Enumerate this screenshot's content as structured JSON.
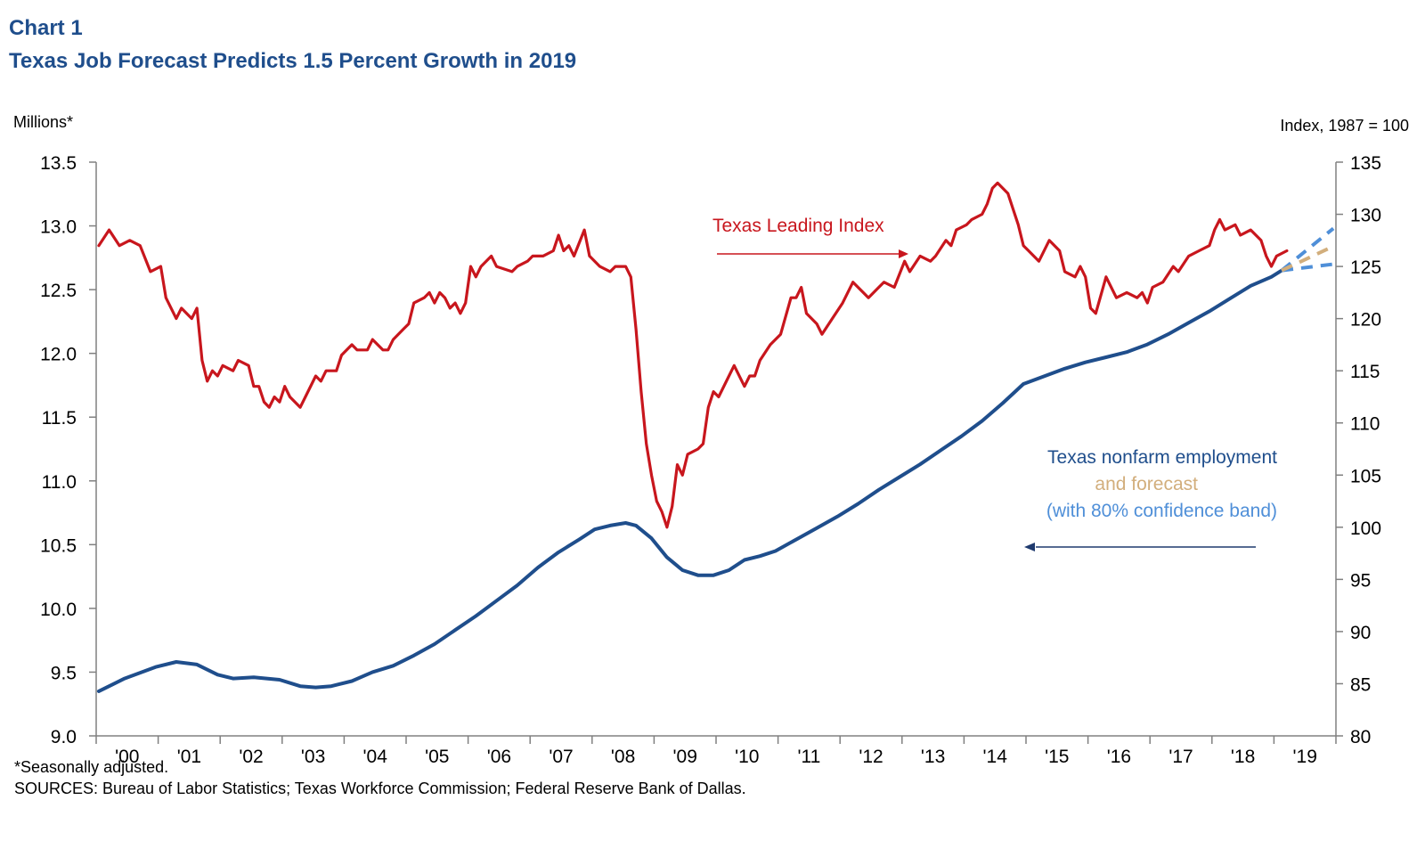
{
  "chart_number": "Chart 1",
  "title": "Texas Job Forecast Predicts 1.5 Percent Growth in 2019",
  "left_axis_label": "Millions*",
  "right_axis_label": "Index, 1987 = 100",
  "footnote": "*Seasonally adjusted.",
  "sources": "SOURCES: Bureau of Labor Statistics; Texas Workforce Commission; Federal Reserve Bank of Dallas.",
  "colors": {
    "title": "#1F4E8C",
    "leading_index": "#C8161D",
    "employment": "#1F4E8C",
    "forecast": "#D2AE7C",
    "confidence_band": "#4F8FD8",
    "axis": "#808080"
  },
  "chart_data": {
    "type": "line",
    "x_start": "2000-01",
    "x_end": "2019-12",
    "x_tick_labels": [
      "'00",
      "'01",
      "'02",
      "'03",
      "'04",
      "'05",
      "'06",
      "'07",
      "'08",
      "'09",
      "'10",
      "'11",
      "'12",
      "'13",
      "'14",
      "'15",
      "'16",
      "'17",
      "'18",
      "'19"
    ],
    "y_left": {
      "min": 9.0,
      "max": 13.5,
      "ticks": [
        "9.0",
        "9.5",
        "10.0",
        "10.5",
        "11.0",
        "11.5",
        "12.0",
        "12.5",
        "13.0",
        "13.5"
      ]
    },
    "y_right": {
      "min": 80,
      "max": 135,
      "ticks": [
        "80",
        "85",
        "90",
        "95",
        "100",
        "105",
        "110",
        "115",
        "120",
        "125",
        "130",
        "135"
      ]
    },
    "grid": false,
    "series": [
      {
        "name": "Texas Leading Index",
        "axis": "right",
        "points": [
          [
            "2000-01",
            127.0
          ],
          [
            "2000-03",
            128.5
          ],
          [
            "2000-05",
            127.0
          ],
          [
            "2000-07",
            127.5
          ],
          [
            "2000-09",
            127.0
          ],
          [
            "2000-11",
            124.5
          ],
          [
            "2001-01",
            125.0
          ],
          [
            "2001-02",
            122.0
          ],
          [
            "2001-04",
            120.0
          ],
          [
            "2001-05",
            121.0
          ],
          [
            "2001-07",
            120.0
          ],
          [
            "2001-08",
            121.0
          ],
          [
            "2001-09",
            116.0
          ],
          [
            "2001-10",
            114.0
          ],
          [
            "2001-11",
            115.0
          ],
          [
            "2001-12",
            114.5
          ],
          [
            "2002-01",
            115.5
          ],
          [
            "2002-03",
            115.0
          ],
          [
            "2002-04",
            116.0
          ],
          [
            "2002-06",
            115.5
          ],
          [
            "2002-07",
            113.5
          ],
          [
            "2002-08",
            113.5
          ],
          [
            "2002-09",
            112.0
          ],
          [
            "2002-10",
            111.5
          ],
          [
            "2002-11",
            112.5
          ],
          [
            "2002-12",
            112.0
          ],
          [
            "2003-01",
            113.5
          ],
          [
            "2003-02",
            112.5
          ],
          [
            "2003-04",
            111.5
          ],
          [
            "2003-05",
            112.5
          ],
          [
            "2003-07",
            114.5
          ],
          [
            "2003-08",
            114.0
          ],
          [
            "2003-09",
            115.0
          ],
          [
            "2003-11",
            115.0
          ],
          [
            "2003-12",
            116.5
          ],
          [
            "2004-02",
            117.5
          ],
          [
            "2004-03",
            117.0
          ],
          [
            "2004-05",
            117.0
          ],
          [
            "2004-06",
            118.0
          ],
          [
            "2004-08",
            117.0
          ],
          [
            "2004-09",
            117.0
          ],
          [
            "2004-10",
            118.0
          ],
          [
            "2004-12",
            119.0
          ],
          [
            "2005-01",
            119.5
          ],
          [
            "2005-02",
            121.5
          ],
          [
            "2005-04",
            122.0
          ],
          [
            "2005-05",
            122.5
          ],
          [
            "2005-06",
            121.5
          ],
          [
            "2005-07",
            122.5
          ],
          [
            "2005-08",
            122.0
          ],
          [
            "2005-09",
            121.0
          ],
          [
            "2005-10",
            121.5
          ],
          [
            "2005-11",
            120.5
          ],
          [
            "2005-12",
            121.5
          ],
          [
            "2006-01",
            125.0
          ],
          [
            "2006-02",
            124.0
          ],
          [
            "2006-03",
            125.0
          ],
          [
            "2006-05",
            126.0
          ],
          [
            "2006-06",
            125.0
          ],
          [
            "2006-09",
            124.5
          ],
          [
            "2006-10",
            125.0
          ],
          [
            "2006-12",
            125.5
          ],
          [
            "2007-01",
            126.0
          ],
          [
            "2007-03",
            126.0
          ],
          [
            "2007-05",
            126.5
          ],
          [
            "2007-06",
            128.0
          ],
          [
            "2007-07",
            126.5
          ],
          [
            "2007-08",
            127.0
          ],
          [
            "2007-09",
            126.0
          ],
          [
            "2007-11",
            128.5
          ],
          [
            "2007-12",
            126.0
          ],
          [
            "2008-02",
            125.0
          ],
          [
            "2008-04",
            124.5
          ],
          [
            "2008-05",
            125.0
          ],
          [
            "2008-07",
            125.0
          ],
          [
            "2008-08",
            124.0
          ],
          [
            "2008-09",
            119.0
          ],
          [
            "2008-10",
            113.0
          ],
          [
            "2008-11",
            108.0
          ],
          [
            "2008-12",
            105.0
          ],
          [
            "2009-01",
            102.5
          ],
          [
            "2009-02",
            101.5
          ],
          [
            "2009-03",
            100.0
          ],
          [
            "2009-04",
            102.0
          ],
          [
            "2009-05",
            106.0
          ],
          [
            "2009-06",
            105.0
          ],
          [
            "2009-07",
            107.0
          ],
          [
            "2009-09",
            107.5
          ],
          [
            "2009-10",
            108.0
          ],
          [
            "2009-11",
            111.5
          ],
          [
            "2009-12",
            113.0
          ],
          [
            "2010-01",
            112.5
          ],
          [
            "2010-03",
            114.5
          ],
          [
            "2010-04",
            115.5
          ],
          [
            "2010-06",
            113.5
          ],
          [
            "2010-07",
            114.5
          ],
          [
            "2010-08",
            114.5
          ],
          [
            "2010-09",
            116.0
          ],
          [
            "2010-11",
            117.5
          ],
          [
            "2011-01",
            118.5
          ],
          [
            "2011-03",
            122.0
          ],
          [
            "2011-04",
            122.0
          ],
          [
            "2011-05",
            123.0
          ],
          [
            "2011-06",
            120.5
          ],
          [
            "2011-08",
            119.5
          ],
          [
            "2011-09",
            118.5
          ],
          [
            "2011-11",
            120.0
          ],
          [
            "2012-01",
            121.5
          ],
          [
            "2012-03",
            123.5
          ],
          [
            "2012-05",
            122.5
          ],
          [
            "2012-06",
            122.0
          ],
          [
            "2012-08",
            123.0
          ],
          [
            "2012-09",
            123.5
          ],
          [
            "2012-11",
            123.0
          ],
          [
            "2013-01",
            125.5
          ],
          [
            "2013-02",
            124.5
          ],
          [
            "2013-04",
            126.0
          ],
          [
            "2013-06",
            125.5
          ],
          [
            "2013-07",
            126.0
          ],
          [
            "2013-09",
            127.5
          ],
          [
            "2013-10",
            127.0
          ],
          [
            "2013-11",
            128.5
          ],
          [
            "2014-01",
            129.0
          ],
          [
            "2014-02",
            129.5
          ],
          [
            "2014-04",
            130.0
          ],
          [
            "2014-05",
            131.0
          ],
          [
            "2014-06",
            132.5
          ],
          [
            "2014-07",
            133.0
          ],
          [
            "2014-09",
            132.0
          ],
          [
            "2014-10",
            130.5
          ],
          [
            "2014-11",
            129.0
          ],
          [
            "2014-12",
            127.0
          ],
          [
            "2015-01",
            126.5
          ],
          [
            "2015-03",
            125.5
          ],
          [
            "2015-05",
            127.5
          ],
          [
            "2015-07",
            126.5
          ],
          [
            "2015-08",
            124.5
          ],
          [
            "2015-10",
            124.0
          ],
          [
            "2015-11",
            125.0
          ],
          [
            "2015-12",
            124.0
          ],
          [
            "2016-01",
            121.0
          ],
          [
            "2016-02",
            120.5
          ],
          [
            "2016-04",
            124.0
          ],
          [
            "2016-05",
            123.0
          ],
          [
            "2016-06",
            122.0
          ],
          [
            "2016-08",
            122.5
          ],
          [
            "2016-10",
            122.0
          ],
          [
            "2016-11",
            122.5
          ],
          [
            "2016-12",
            121.5
          ],
          [
            "2017-01",
            123.0
          ],
          [
            "2017-03",
            123.5
          ],
          [
            "2017-05",
            125.0
          ],
          [
            "2017-06",
            124.5
          ],
          [
            "2017-08",
            126.0
          ],
          [
            "2017-10",
            126.5
          ],
          [
            "2017-12",
            127.0
          ],
          [
            "2018-01",
            128.5
          ],
          [
            "2018-02",
            129.5
          ],
          [
            "2018-03",
            128.5
          ],
          [
            "2018-05",
            129.0
          ],
          [
            "2018-06",
            128.0
          ],
          [
            "2018-08",
            128.5
          ],
          [
            "2018-10",
            127.5
          ],
          [
            "2018-11",
            126.0
          ],
          [
            "2018-12",
            125.0
          ],
          [
            "2019-01",
            126.0
          ],
          [
            "2019-03",
            126.5
          ]
        ]
      },
      {
        "name": "Texas nonfarm employment",
        "axis": "left",
        "points": [
          [
            "2000-01",
            9.35
          ],
          [
            "2000-06",
            9.45
          ],
          [
            "2000-12",
            9.54
          ],
          [
            "2001-04",
            9.58
          ],
          [
            "2001-08",
            9.56
          ],
          [
            "2001-12",
            9.48
          ],
          [
            "2002-03",
            9.45
          ],
          [
            "2002-07",
            9.46
          ],
          [
            "2002-12",
            9.44
          ],
          [
            "2003-04",
            9.39
          ],
          [
            "2003-07",
            9.38
          ],
          [
            "2003-10",
            9.39
          ],
          [
            "2004-02",
            9.43
          ],
          [
            "2004-06",
            9.5
          ],
          [
            "2004-10",
            9.55
          ],
          [
            "2005-02",
            9.63
          ],
          [
            "2005-06",
            9.72
          ],
          [
            "2005-10",
            9.83
          ],
          [
            "2006-02",
            9.94
          ],
          [
            "2006-06",
            10.06
          ],
          [
            "2006-10",
            10.18
          ],
          [
            "2007-02",
            10.32
          ],
          [
            "2007-06",
            10.44
          ],
          [
            "2007-10",
            10.54
          ],
          [
            "2008-01",
            10.62
          ],
          [
            "2008-04",
            10.65
          ],
          [
            "2008-07",
            10.67
          ],
          [
            "2008-09",
            10.65
          ],
          [
            "2008-12",
            10.55
          ],
          [
            "2009-03",
            10.4
          ],
          [
            "2009-06",
            10.3
          ],
          [
            "2009-09",
            10.26
          ],
          [
            "2009-12",
            10.26
          ],
          [
            "2010-03",
            10.3
          ],
          [
            "2010-06",
            10.38
          ],
          [
            "2010-09",
            10.41
          ],
          [
            "2010-12",
            10.45
          ],
          [
            "2011-04",
            10.54
          ],
          [
            "2011-08",
            10.63
          ],
          [
            "2011-12",
            10.72
          ],
          [
            "2012-04",
            10.82
          ],
          [
            "2012-08",
            10.93
          ],
          [
            "2012-12",
            11.03
          ],
          [
            "2013-04",
            11.13
          ],
          [
            "2013-08",
            11.24
          ],
          [
            "2013-12",
            11.35
          ],
          [
            "2014-04",
            11.47
          ],
          [
            "2014-08",
            11.61
          ],
          [
            "2014-12",
            11.76
          ],
          [
            "2015-04",
            11.82
          ],
          [
            "2015-08",
            11.88
          ],
          [
            "2015-12",
            11.93
          ],
          [
            "2016-04",
            11.97
          ],
          [
            "2016-08",
            12.01
          ],
          [
            "2016-12",
            12.07
          ],
          [
            "2017-04",
            12.15
          ],
          [
            "2017-08",
            12.24
          ],
          [
            "2017-12",
            12.33
          ],
          [
            "2018-04",
            12.43
          ],
          [
            "2018-08",
            12.53
          ],
          [
            "2018-12",
            12.6
          ],
          [
            "2019-02",
            12.65
          ]
        ]
      },
      {
        "name": "forecast",
        "axis": "left",
        "points": [
          [
            "2019-02",
            12.65
          ],
          [
            "2019-12",
            12.84
          ]
        ]
      },
      {
        "name": "80% confidence band",
        "axis": "left",
        "upper": [
          [
            "2019-02",
            12.65
          ],
          [
            "2019-12",
            12.98
          ]
        ],
        "lower": [
          [
            "2019-02",
            12.65
          ],
          [
            "2019-12",
            12.7
          ]
        ]
      }
    ],
    "annotations": {
      "leading_index_label": "Texas Leading Index",
      "employment_label": "Texas nonfarm employment",
      "forecast_label": "and forecast",
      "band_label": "(with 80% confidence band)"
    }
  }
}
